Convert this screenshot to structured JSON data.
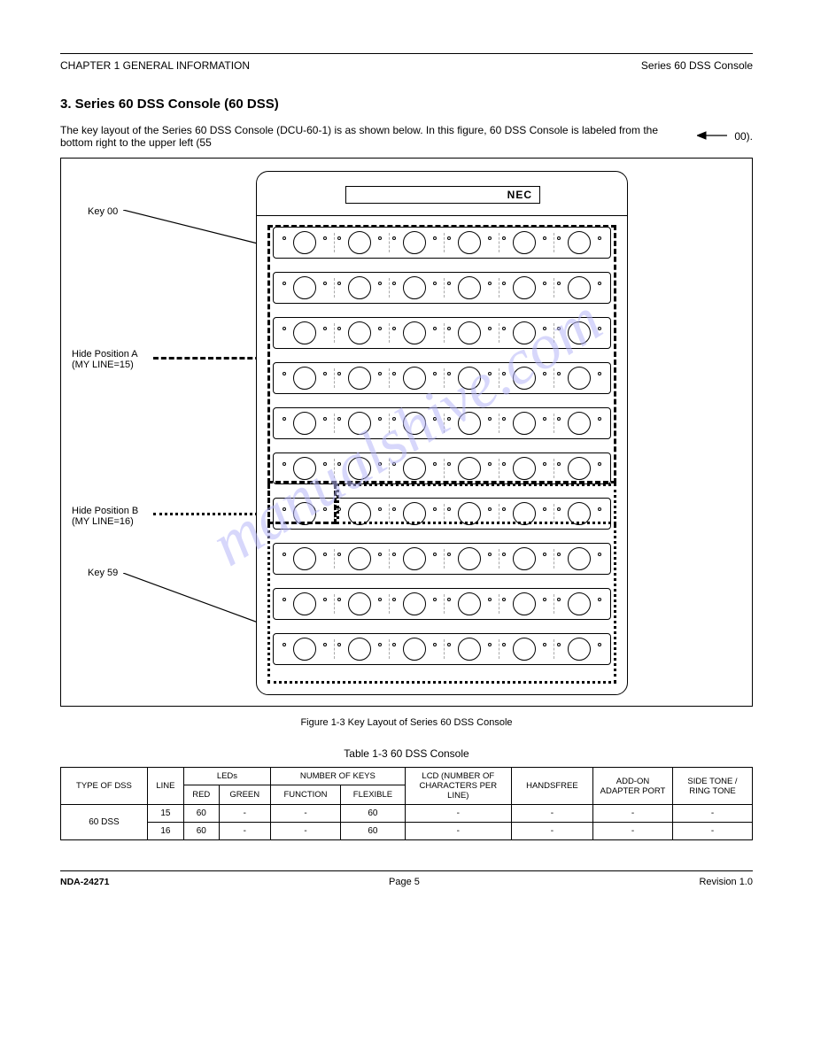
{
  "header": {
    "left": "CHAPTER 1 GENERAL INFORMATION",
    "right": "Series 60 DSS Console"
  },
  "section_title": "3. Series 60 DSS Console (60 DSS)",
  "intro_text": "The key layout of the Series 60 DSS Console (DCU-60-1) is as shown below. In this figure, 60 DSS Console is labeled from the bottom right to the upper left (55",
  "intro_tail": "00).",
  "labels": {
    "key00": "Key 00",
    "key59": "Key 59",
    "hideA": "Hide Position A (MY LINE=15)",
    "hideB": "Hide Position B (MY LINE=16)"
  },
  "brand": "NEC",
  "figure_caption": "Figure 1-3  Key Layout of Series 60 DSS Console",
  "table_caption": "Table 1-3  60 DSS Console",
  "table": {
    "headers": {
      "type": "TYPE OF DSS",
      "line": "LINE",
      "red": "RED",
      "green": "GREEN",
      "lcd": "LCD (NUMBER OF CHARACTERS PER LINE)",
      "handsfree": "HANDSFREE",
      "adapter": "ADD-ON ADAPTER PORT",
      "tone": "SIDE TONE / RING TONE"
    },
    "sub": {
      "leds": "LEDs",
      "keys": "NUMBER OF KEYS",
      "func": "FUNCTION",
      "flex": "FLEXIBLE"
    },
    "rows": [
      {
        "type": "60 DSS",
        "line": "15",
        "red": "60",
        "green": "-",
        "func": "-",
        "flex": "60",
        "lcd": "-",
        "hf": "-",
        "adp": "-",
        "tone": "-"
      },
      {
        "type": "",
        "line": "16",
        "red": "60",
        "green": "-",
        "func": "-",
        "flex": "60",
        "lcd": "-",
        "hf": "-",
        "adp": "-",
        "tone": "-"
      }
    ]
  },
  "footer": {
    "left": "NDA-24271",
    "mid": "Page 5",
    "right": "Revision 1.0"
  },
  "colors": {
    "watermark": "#b8b8f8"
  }
}
